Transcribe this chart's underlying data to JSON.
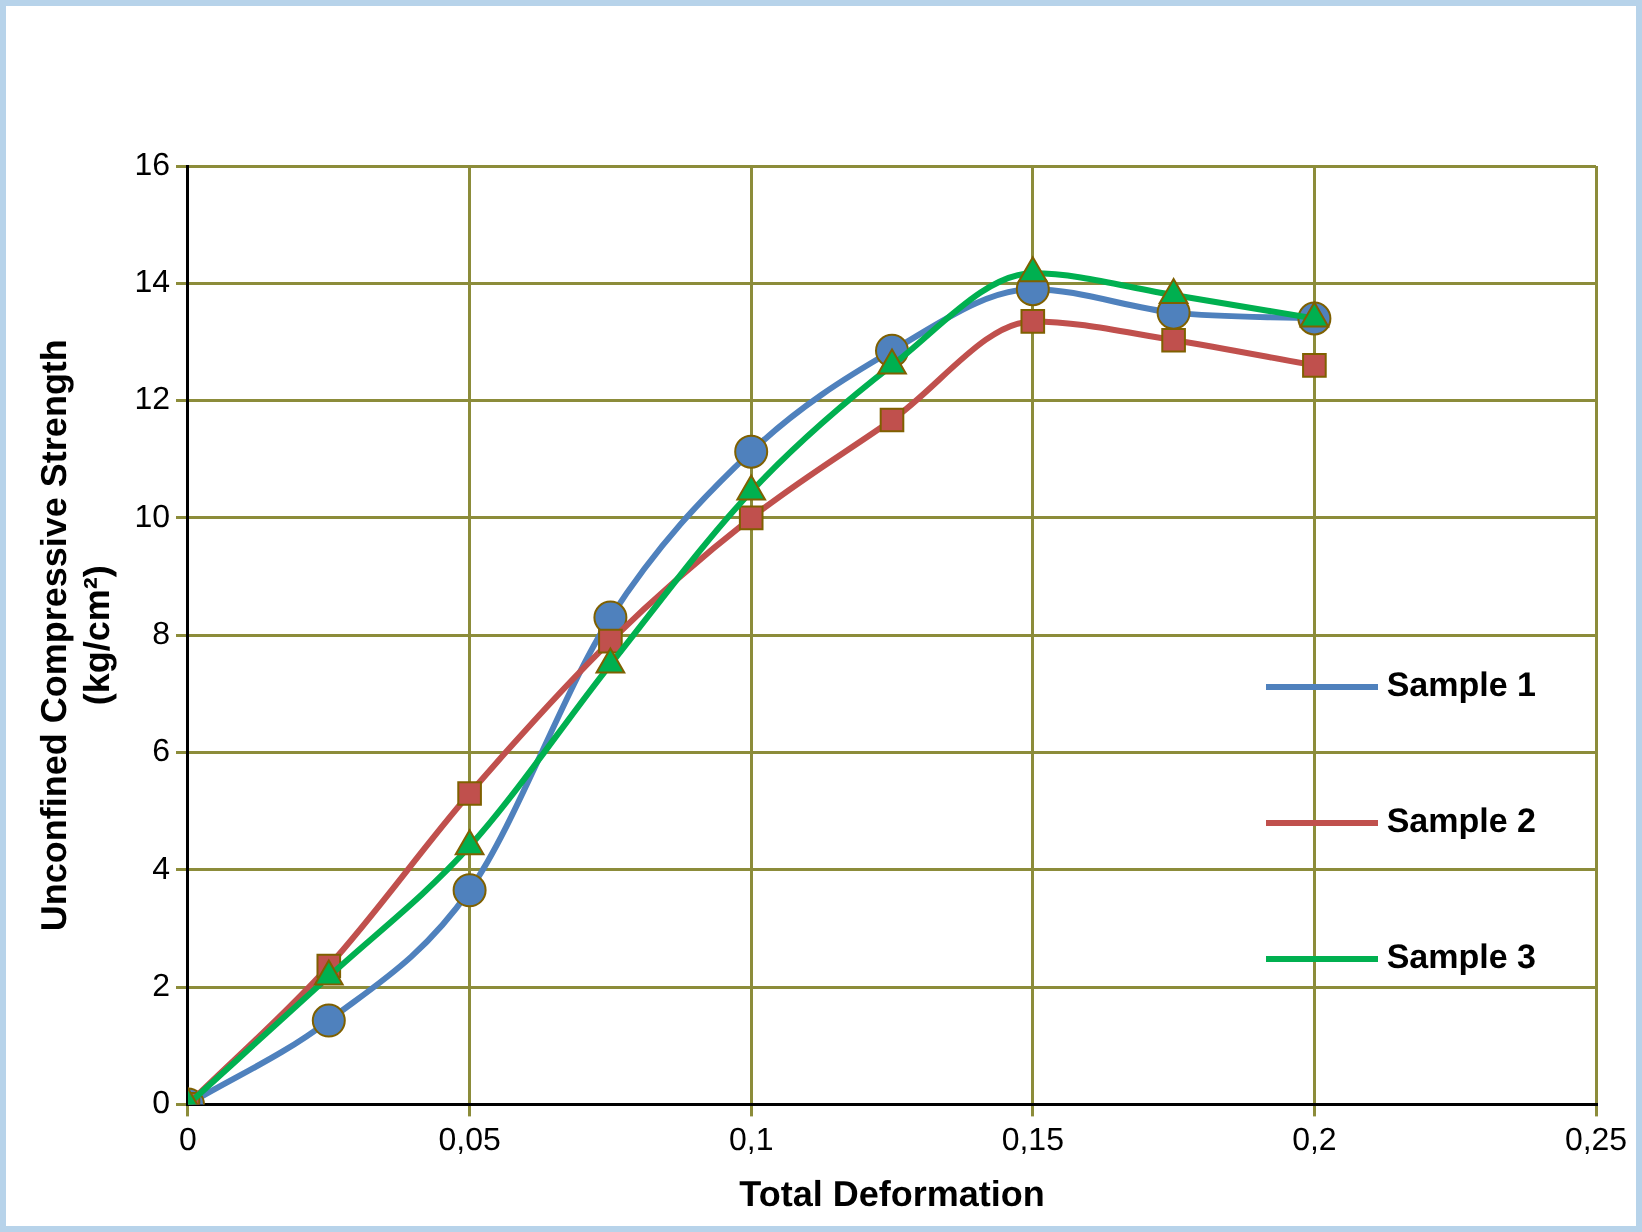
{
  "chart_data": {
    "type": "line",
    "xlabel": "Total Deformation",
    "ylabel": "Unconfined Compressive Strength\n(kg/cm²)",
    "x": [
      0,
      0.025,
      0.05,
      0.075,
      0.1,
      0.125,
      0.15,
      0.175,
      0.2
    ],
    "series": [
      {
        "name": "Sample 1",
        "color": "#4f81bd",
        "marker": "circle",
        "values": [
          0,
          1.43,
          3.65,
          8.3,
          11.13,
          12.85,
          13.9,
          13.5,
          13.4
        ]
      },
      {
        "name": "Sample 2",
        "color": "#c0504d",
        "marker": "square",
        "values": [
          0,
          2.36,
          5.3,
          7.9,
          10.0,
          11.67,
          13.35,
          13.03,
          12.6
        ]
      },
      {
        "name": "Sample 3",
        "color": "#00b050",
        "marker": "triangle",
        "values": [
          0,
          2.18,
          4.4,
          7.5,
          10.45,
          12.6,
          14.17,
          13.8,
          13.4
        ]
      }
    ],
    "xlim": [
      0,
      0.25
    ],
    "xticks": [
      0,
      {
        "value": 0.05,
        "label": "0,05"
      },
      {
        "value": 0.1,
        "label": "0,1"
      },
      {
        "value": 0.15,
        "label": "0,15"
      },
      {
        "value": 0.2,
        "label": "0,2"
      },
      {
        "value": 0.25,
        "label": "0,25"
      }
    ],
    "ylim": [
      0,
      16
    ],
    "yticks": [
      0,
      2,
      4,
      6,
      8,
      10,
      12,
      14,
      16
    ],
    "grid": true,
    "legend": "right"
  }
}
